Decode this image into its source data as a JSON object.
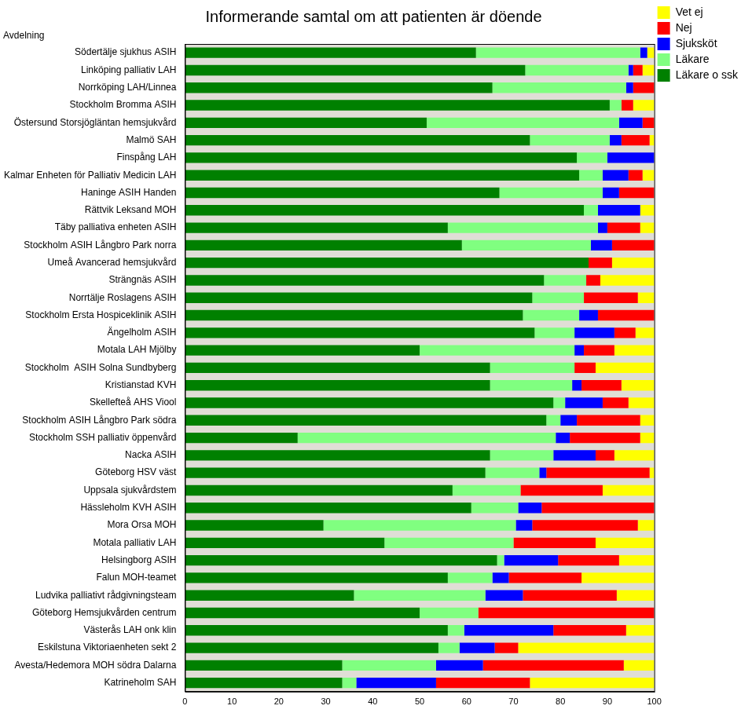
{
  "chart_data": {
    "type": "bar",
    "title": "Informerande samtal om att patienten är döende",
    "y_label": "Avdelning",
    "orientation": "horizontal",
    "stacked": true,
    "grid": false,
    "legend": "top right",
    "xlim": [
      0,
      100
    ],
    "xticks": [
      0,
      10,
      20,
      30,
      40,
      50,
      60,
      70,
      80,
      90,
      100
    ],
    "categories": [
      "Södertälje sjukhus ASIH",
      "Linköping palliativ LAH",
      "Norrköping LAH/Linnea",
      "Stockholm Bromma ASIH",
      "Östersund Storsjögläntan hemsjukvård",
      "Malmö SAH",
      "Finspång LAH",
      "Kalmar Enheten för Palliativ Medicin LAH",
      "Haninge ASIH Handen",
      "Rättvik Leksand MOH",
      "Täby palliativa enheten ASIH",
      "Stockholm ASIH Långbro Park norra",
      "Umeå Avancerad hemsjukvård",
      "Strängnäs ASIH",
      "Norrtälje Roslagens ASIH",
      "Stockholm Ersta Hospiceklinik ASIH",
      "Ängelholm ASIH",
      "Motala LAH Mjölby",
      "Stockholm  ASIH Solna Sundbyberg",
      "Kristianstad KVH",
      "Skellefteå AHS Viool",
      "Stockholm ASIH Långbro Park södra",
      "Stockholm SSH palliativ öppenvård",
      "Nacka ASIH",
      "Göteborg HSV väst",
      "Uppsala sjukvårdstem",
      "Hässleholm KVH ASIH",
      "Mora Orsa MOH",
      "Motala palliativ LAH",
      "Helsingborg ASIH",
      "Falun MOH-teamet",
      "Ludvika palliativt rådgivningsteam",
      "Göteborg Hemsjukvården centrum",
      "Västerås LAH onk klin",
      "Eskilstuna Viktoriaenheten sekt 2",
      "Avesta/Hedemora MOH södra Dalarna",
      "Katrineholm SAH"
    ],
    "series": [
      {
        "name": "Läkare o ssk",
        "color": "#008000",
        "values": [
          62,
          72.5,
          65.5,
          90.5,
          51.5,
          73.5,
          83.5,
          84,
          67,
          85,
          56,
          59,
          86,
          76.5,
          74,
          72,
          74.5,
          50,
          65,
          65,
          78.5,
          77,
          24,
          65,
          64,
          57,
          61,
          29.5,
          42.5,
          66.5,
          56,
          36,
          50,
          56,
          54,
          33.5,
          33.5
        ]
      },
      {
        "name": "Läkare",
        "color": "#80ff80",
        "values": [
          35,
          22,
          28.5,
          2.5,
          41,
          17,
          6.5,
          5,
          22,
          3,
          32,
          27.5,
          0,
          9,
          11,
          12,
          8.5,
          33,
          18,
          17.5,
          2.5,
          3,
          55,
          13.5,
          11.5,
          14.5,
          10,
          41,
          27.5,
          1.5,
          9.5,
          28,
          12.5,
          3.5,
          4.5,
          20,
          3
        ]
      },
      {
        "name": "Sjuksköt",
        "color": "#0000ff",
        "values": [
          1.5,
          1,
          1.5,
          0,
          5,
          2.5,
          10,
          5.5,
          3.5,
          9,
          2,
          4.5,
          0,
          0,
          0,
          4,
          8.5,
          2,
          0,
          2,
          8,
          3.5,
          3,
          9,
          1.5,
          0,
          5,
          3.5,
          0,
          11.5,
          3.5,
          8,
          0,
          19,
          7.5,
          10,
          17
        ]
      },
      {
        "name": "Nej",
        "color": "#ff0000",
        "values": [
          0,
          2,
          4.5,
          2.5,
          2.5,
          6,
          0,
          3,
          7.5,
          0,
          7,
          9,
          5,
          3,
          11.5,
          12,
          4.5,
          6.5,
          4.5,
          8.5,
          5.5,
          13.5,
          15,
          4,
          22,
          17.5,
          24,
          22.5,
          17.5,
          13,
          15.5,
          20,
          37.5,
          15.5,
          5,
          30,
          20
        ]
      },
      {
        "name": "Vet ej",
        "color": "#ffff00",
        "values": [
          1.5,
          2.5,
          0,
          4.5,
          0,
          1,
          0,
          2.5,
          0,
          3,
          3,
          0,
          9,
          11.5,
          3.5,
          0,
          4,
          8.5,
          12.5,
          7,
          5.5,
          3,
          3,
          8.5,
          1,
          11,
          0,
          3.5,
          12.5,
          7.5,
          15.5,
          8,
          0,
          6,
          29,
          6.5,
          26.5
        ]
      }
    ]
  }
}
